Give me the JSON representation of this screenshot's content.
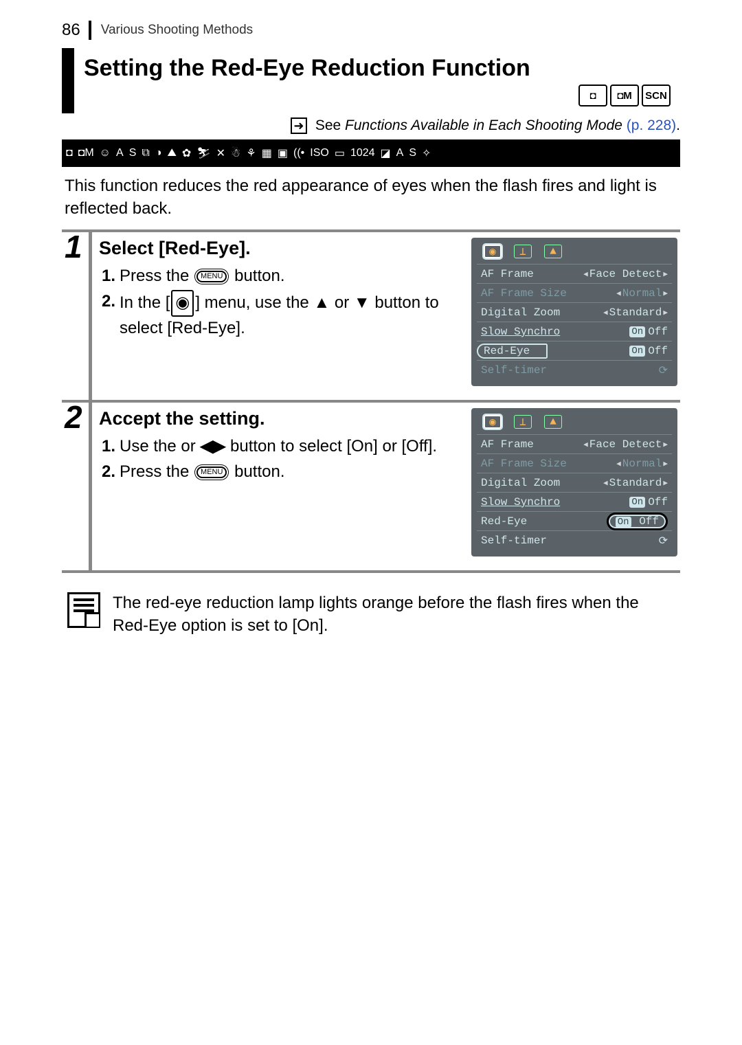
{
  "page_number": "86",
  "section_label": "Various Shooting Methods",
  "title": "Setting the Red-Eye Reduction Function",
  "mode_boxes": [
    "◘",
    "◘M",
    "SCN"
  ],
  "reference": {
    "prefix": "See ",
    "italic": "Functions Available in Each Shooting Mode",
    "page_link": " (p. 228)",
    "link_color": "#2a52be"
  },
  "icon_strip": [
    "◘",
    "◘M",
    "☺",
    "A",
    "S",
    "⧉",
    "◑",
    "⛰",
    "✿",
    "⛷",
    "✕",
    "☃",
    "⚘",
    "▦",
    "▣",
    "((•",
    "ISO",
    "▭",
    "1024",
    "◪",
    "A",
    "S",
    "✧"
  ],
  "intro": "This function reduces the red appearance of eyes when the flash fires and light is reflected back.",
  "steps": [
    {
      "num": "1",
      "title": "Select [Red-Eye].",
      "items": [
        {
          "n": "1.",
          "pre": "Press the ",
          "btn": "MENU",
          "post": " button."
        },
        {
          "n": "2.",
          "pre": "In the [",
          "cam": "◉",
          "mid": "] menu, use the ",
          "a1": "▲",
          "mid2": " or ",
          "a2": "▼",
          "post": " button to select [Red-Eye]."
        }
      ],
      "screenshot": {
        "highlight": "label",
        "rows": [
          {
            "label": "AF Frame",
            "value": "Face Detect",
            "arrows": true
          },
          {
            "label": "AF Frame Size",
            "value": "Normal",
            "arrows": true,
            "dimmed": true
          },
          {
            "label": "Digital Zoom",
            "value": "Standard",
            "arrows": true
          },
          {
            "label": "Slow Synchro",
            "value_on": "On",
            "value_off": "Off",
            "dimmed": false,
            "underline": true
          },
          {
            "label": "Red-Eye",
            "value_on": "On",
            "value_off": "Off",
            "hl_label": true
          },
          {
            "label": "Self-timer",
            "value": "⟳",
            "dimmed": true
          }
        ]
      }
    },
    {
      "num": "2",
      "title": "Accept the setting.",
      "items": [
        {
          "n": "1.",
          "pre": "Use the ",
          "a1": "◀",
          "mid": " or ",
          "a2": "▶",
          "post": " button to select [On] or [Off]."
        },
        {
          "n": "2.",
          "pre": "Press the ",
          "btn": "MENU",
          "post": " button."
        }
      ],
      "screenshot": {
        "highlight": "value",
        "rows": [
          {
            "label": "AF Frame",
            "value": "Face Detect",
            "arrows": true
          },
          {
            "label": "AF Frame Size",
            "value": "Normal",
            "arrows": true,
            "dimmed": true
          },
          {
            "label": "Digital Zoom",
            "value": "Standard",
            "arrows": true
          },
          {
            "label": "Slow Synchro",
            "value_on": "On",
            "value_off": "Off",
            "underline": true
          },
          {
            "label": "Red-Eye",
            "value_on": "On",
            "value_off": "Off",
            "hl_value": true
          },
          {
            "label": "Self-timer",
            "value": "⟳"
          }
        ]
      }
    }
  ],
  "note": "The red-eye reduction lamp lights orange before the flash fires when the Red-Eye option is set to [On].",
  "colors": {
    "icon_strip_bg": "#000000",
    "screenshot_bg": "#5a6268",
    "screenshot_text": "#cfe5ea",
    "screenshot_dimmed": "#7f9ca5",
    "step_border": "#888888"
  }
}
